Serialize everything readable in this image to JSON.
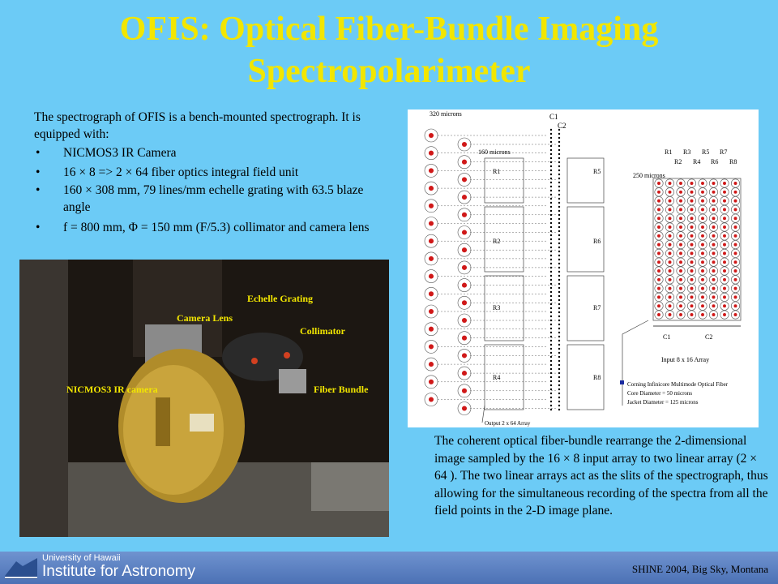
{
  "title": [
    "OFIS: Optical Fiber-Bundle Imaging",
    "Spectropolarimeter"
  ],
  "intro": "The spectrograph of OFIS is a bench-mounted spectrograph. It is equipped with:",
  "bullets": [
    "NICMOS3 IR Camera",
    "16 × 8 => 2 × 64 fiber optics integral field unit",
    "160 × 308 mm, 79 lines/mm echelle grating with 63.5 blaze angle",
    "f = 800 mm, Φ = 150 mm (F/5.3) collimator and camera lens"
  ],
  "photo_labels": [
    "Echelle Grating",
    "Camera Lens",
    "Collimator",
    "NICMOS3 IR camera",
    "Fiber Bundle"
  ],
  "diagram": {
    "dimension_labels": [
      "320 microns",
      "160 microns",
      "250 microns"
    ],
    "column_labels": [
      "C1",
      "C2"
    ],
    "left_rows": [
      "R1",
      "R2",
      "R3",
      "R4",
      "R5",
      "R6",
      "R7",
      "R8"
    ],
    "right_header": [
      "R1",
      "R3",
      "R5",
      "R7",
      "R2",
      "R4",
      "R6",
      "R8"
    ],
    "bottom_columns": [
      "C1",
      "C2"
    ],
    "input_label": "Input 8 x 16 Array",
    "legend": [
      "Corning Infinicore Multimode Optical Fiber",
      "Core Diameter = 50 microns",
      "Jacket Diameter = 125 microns"
    ],
    "output_label": "Output 2 x 64 Array"
  },
  "caption": "The coherent optical fiber-bundle rearrange the 2-dimensional image sampled by the 16 × 8 input array to two linear array (2 × 64 ). The two linear arrays act as the slits of the spectrograph, thus allowing for the simultaneous recording of the spectra from all the field points in the 2-D image plane.",
  "footer": {
    "institution": [
      "University of Hawaii",
      "Institute for Astronomy"
    ],
    "event": "SHINE 2004, Big Sky, Montana"
  }
}
